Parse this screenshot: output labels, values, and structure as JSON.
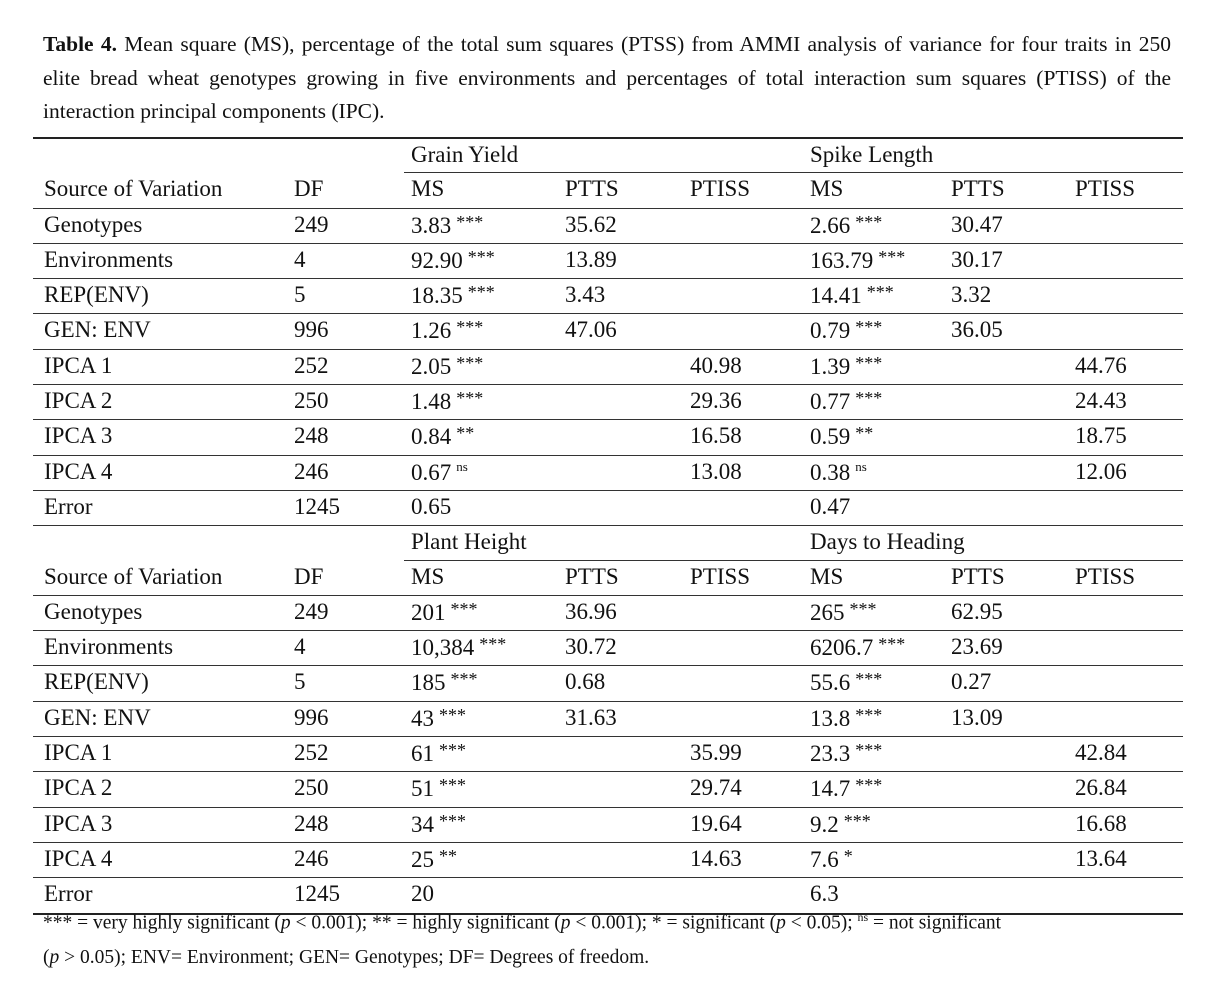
{
  "caption": {
    "label": "Table 4.",
    "text": " Mean square (MS), percentage of the total sum squares (PTSS) from AMMI analysis of variance for four traits in 250 elite bread wheat genotypes growing in five environments and percentages of total interaction sum squares (PTISS) of the interaction principal components (IPC)."
  },
  "col_headers": [
    "Source of Variation",
    "DF",
    "MS",
    "PTTS",
    "PTISS",
    "MS",
    "PTTS",
    "PTISS"
  ],
  "blocks": [
    {
      "traits": [
        "Grain Yield",
        "Spike Length"
      ],
      "rows": [
        [
          "Genotypes",
          "249",
          [
            "3.83",
            "***"
          ],
          "35.62",
          "",
          [
            "2.66",
            "***"
          ],
          "30.47",
          ""
        ],
        [
          "Environments",
          "4",
          [
            "92.90",
            "***"
          ],
          "13.89",
          "",
          [
            "163.79",
            "***"
          ],
          "30.17",
          ""
        ],
        [
          "REP(ENV)",
          "5",
          [
            "18.35",
            "***"
          ],
          "3.43",
          "",
          [
            "14.41",
            "***"
          ],
          "3.32",
          ""
        ],
        [
          "GEN: ENV",
          "996",
          [
            "1.26",
            "***"
          ],
          "47.06",
          "",
          [
            "0.79",
            "***"
          ],
          "36.05",
          ""
        ],
        [
          "IPCA 1",
          "252",
          [
            "2.05",
            "***"
          ],
          "",
          "40.98",
          [
            "1.39",
            "***"
          ],
          "",
          "44.76"
        ],
        [
          "IPCA 2",
          "250",
          [
            "1.48",
            "***"
          ],
          "",
          "29.36",
          [
            "0.77",
            "***"
          ],
          "",
          "24.43"
        ],
        [
          "IPCA 3",
          "248",
          [
            "0.84",
            "**"
          ],
          "",
          "16.58",
          [
            "0.59",
            "**"
          ],
          "",
          "18.75"
        ],
        [
          "IPCA 4",
          "246",
          [
            "0.67",
            "ns"
          ],
          "",
          "13.08",
          [
            "0.38",
            "ns"
          ],
          "",
          "12.06"
        ],
        [
          "Error",
          "1245",
          [
            "0.65",
            ""
          ],
          "",
          "",
          [
            "0.47",
            ""
          ],
          "",
          ""
        ]
      ]
    },
    {
      "traits": [
        "Plant Height",
        "Days to Heading"
      ],
      "rows": [
        [
          "Genotypes",
          "249",
          [
            "201",
            "***"
          ],
          "36.96",
          "",
          [
            "265",
            "***"
          ],
          "62.95",
          ""
        ],
        [
          "Environments",
          "4",
          [
            "10,384",
            "***"
          ],
          "30.72",
          "",
          [
            "6206.7",
            "***"
          ],
          "23.69",
          ""
        ],
        [
          "REP(ENV)",
          "5",
          [
            "185",
            "***"
          ],
          "0.68",
          "",
          [
            "55.6",
            "***"
          ],
          "0.27",
          ""
        ],
        [
          "GEN: ENV",
          "996",
          [
            "43",
            "***"
          ],
          "31.63",
          "",
          [
            "13.8",
            "***"
          ],
          "13.09",
          ""
        ],
        [
          "IPCA 1",
          "252",
          [
            "61",
            "***"
          ],
          "",
          "35.99",
          [
            "23.3",
            "***"
          ],
          "",
          "42.84"
        ],
        [
          "IPCA 2",
          "250",
          [
            "51",
            "***"
          ],
          "",
          "29.74",
          [
            "14.7",
            "***"
          ],
          "",
          "26.84"
        ],
        [
          "IPCA 3",
          "248",
          [
            "34",
            "***"
          ],
          "",
          "19.64",
          [
            "9.2",
            "***"
          ],
          "",
          "16.68"
        ],
        [
          "IPCA 4",
          "246",
          [
            "25",
            "**"
          ],
          "",
          "14.63",
          [
            "7.6",
            "*"
          ],
          "",
          "13.64"
        ],
        [
          "Error",
          "1245",
          [
            "20",
            ""
          ],
          "",
          "",
          [
            "6.3",
            ""
          ],
          "",
          ""
        ]
      ]
    }
  ],
  "footnote": {
    "p1a": "*** = very highly significant (",
    "p": "p",
    "p1b": " < 0.001); ** = highly significant (",
    "p1c": " < 0.001); * = significant (",
    "p1d": " < 0.05); ",
    "ns": "ns",
    "p1e": " = not significant",
    "p2a": "(",
    "p2b": " > 0.05); ENV= Environment; GEN= Genotypes; DF= Degrees of freedom."
  }
}
